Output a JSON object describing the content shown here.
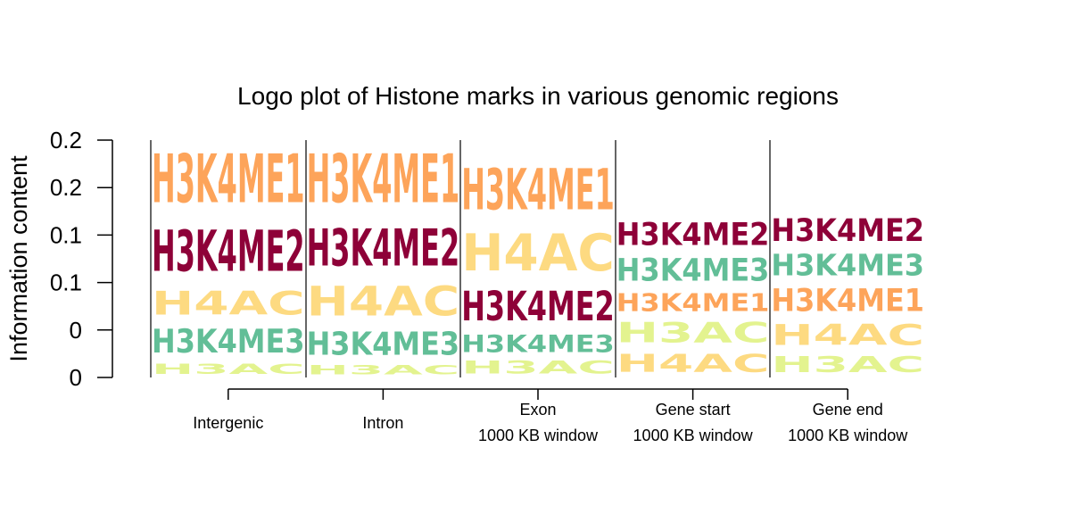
{
  "chart_data": {
    "type": "logo",
    "title": "Logo plot of Histone marks in various genomic regions",
    "ylabel": "Information content",
    "xlabel": "",
    "y_tick_labels": [
      "0",
      "0",
      "0.1",
      "0.1",
      "0.2",
      "0.2"
    ],
    "ylim": [
      0,
      0.25
    ],
    "colors": {
      "H3K4ME1": "#FDA45A",
      "H3K4ME2": "#8E0138",
      "H4AC": "#FDDA81",
      "H3K4ME3": "#62BE97",
      "H3AC": "#E3F38F"
    },
    "categories": [
      {
        "label_lines": [
          "Intergenic"
        ],
        "stack": [
          {
            "mark": "H3AC",
            "value": 0.018
          },
          {
            "mark": "H3K4ME3",
            "value": 0.04
          },
          {
            "mark": "H4AC",
            "value": 0.04
          },
          {
            "mark": "H3K4ME2",
            "value": 0.07
          },
          {
            "mark": "H3K4ME1",
            "value": 0.082
          }
        ]
      },
      {
        "label_lines": [
          "Intron"
        ],
        "stack": [
          {
            "mark": "H3AC",
            "value": 0.016
          },
          {
            "mark": "H3K4ME3",
            "value": 0.039
          },
          {
            "mark": "H4AC",
            "value": 0.05
          },
          {
            "mark": "H3K4ME2",
            "value": 0.063
          },
          {
            "mark": "H3K4ME1",
            "value": 0.082
          }
        ]
      },
      {
        "label_lines": [
          "Exon",
          "1000 KB window"
        ],
        "stack": [
          {
            "mark": "H3AC",
            "value": 0.021
          },
          {
            "mark": "H3K4ME3",
            "value": 0.029
          },
          {
            "mark": "H3K4ME2",
            "value": 0.05
          },
          {
            "mark": "H4AC",
            "value": 0.063
          },
          {
            "mark": "H3K4ME1",
            "value": 0.07
          }
        ]
      },
      {
        "label_lines": [
          "Gene start",
          "1000 KB window"
        ],
        "stack": [
          {
            "mark": "H4AC",
            "value": 0.03
          },
          {
            "mark": "H3AC",
            "value": 0.034
          },
          {
            "mark": "H3K4ME1",
            "value": 0.03
          },
          {
            "mark": "H3K4ME3",
            "value": 0.038
          },
          {
            "mark": "H3K4ME2",
            "value": 0.038
          }
        ]
      },
      {
        "label_lines": [
          "Gene end",
          "1000 KB window"
        ],
        "stack": [
          {
            "mark": "H3AC",
            "value": 0.027
          },
          {
            "mark": "H4AC",
            "value": 0.035
          },
          {
            "mark": "H3K4ME1",
            "value": 0.038
          },
          {
            "mark": "H3K4ME3",
            "value": 0.036
          },
          {
            "mark": "H3K4ME2",
            "value": 0.038
          }
        ]
      }
    ]
  }
}
